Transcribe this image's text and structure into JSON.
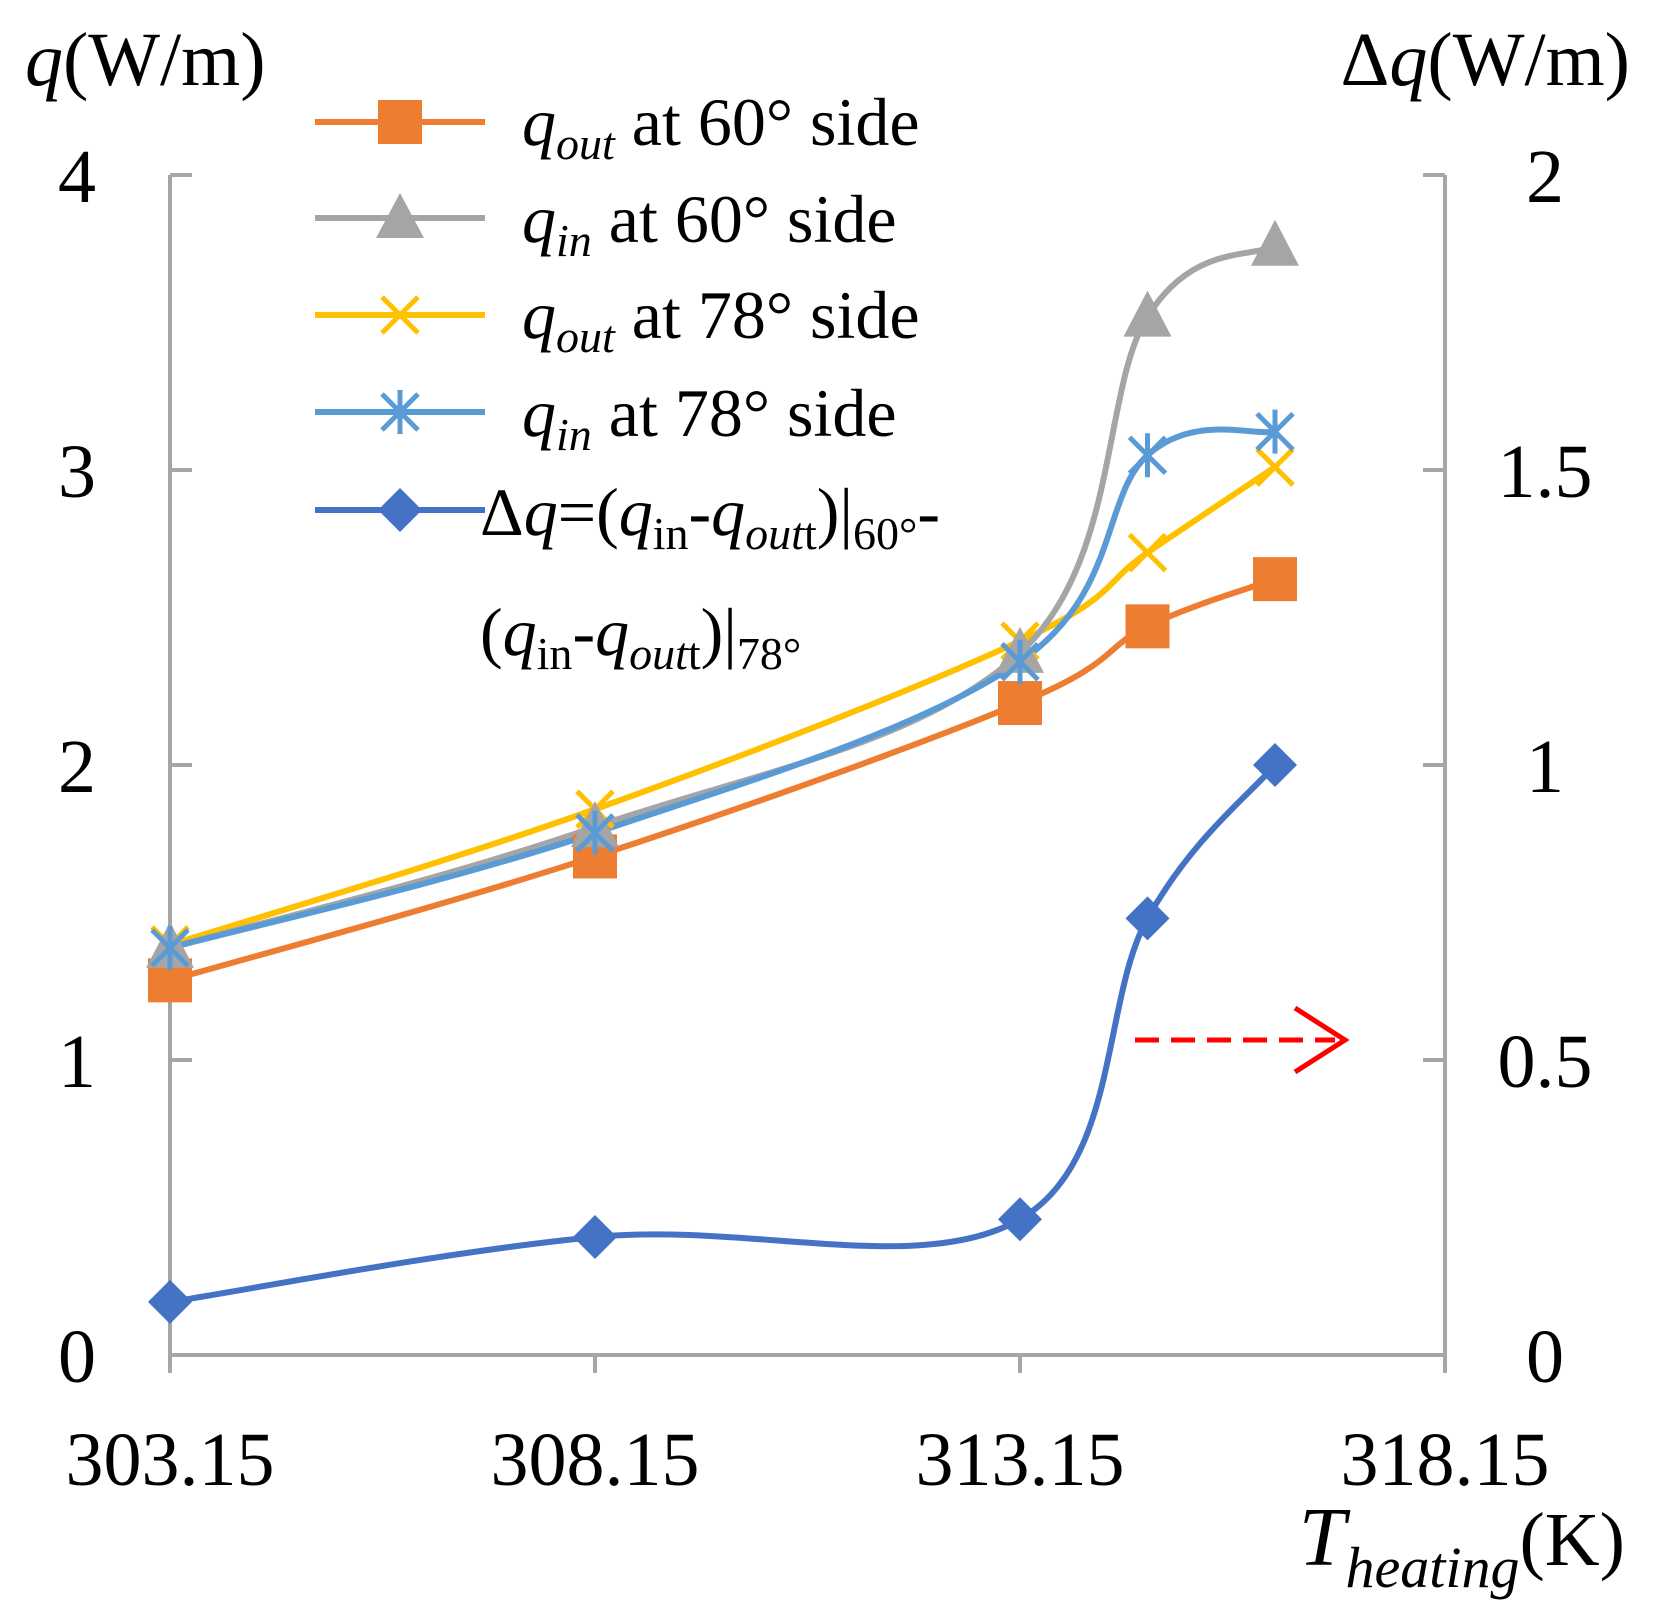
{
  "chart_data": {
    "type": "line",
    "title": "",
    "x": [
      303.15,
      308.15,
      313.15,
      314.65,
      316.15
    ],
    "xlabel": {
      "symbol": "T",
      "subscript": "heating",
      "unit": "(K)"
    },
    "ylabel_left": {
      "symbol": "q",
      "unit": "(W/m)"
    },
    "ylabel_right": {
      "delta": "Δ",
      "symbol": "q",
      "unit": "(W/m)"
    },
    "xlim": [
      303.15,
      318.15
    ],
    "ylim_left": [
      0,
      4
    ],
    "ylim_right": [
      0,
      2
    ],
    "x_tick_labels": [
      "303.15",
      "308.15",
      "313.15",
      "318.15"
    ],
    "y_left_tick_labels": [
      "0",
      "1",
      "2",
      "3",
      "4"
    ],
    "y_right_tick_labels": [
      "0",
      "0.5",
      "1",
      "1.5",
      "2"
    ],
    "series": [
      {
        "name": "q_out at 60° side",
        "legend": {
          "sym": "q",
          "sub": "out",
          "rest": " at 60° side"
        },
        "color": "#ED7D31",
        "marker": "square",
        "axis": "left",
        "values": [
          1.27,
          1.69,
          2.21,
          2.47,
          2.63
        ]
      },
      {
        "name": "q_in at 60° side",
        "legend": {
          "sym": "q",
          "sub": "in",
          "rest": " at 60° side"
        },
        "color": "#A5A5A5",
        "marker": "triangle",
        "axis": "left",
        "values": [
          1.38,
          1.79,
          2.38,
          3.52,
          3.76
        ]
      },
      {
        "name": "q_out at 78° side",
        "legend": {
          "sym": "q",
          "sub": "out",
          "rest": " at 78° side"
        },
        "color": "#FFC000",
        "marker": "x",
        "axis": "left",
        "values": [
          1.39,
          1.85,
          2.42,
          2.72,
          3.01
        ]
      },
      {
        "name": "q_in at 78° side",
        "legend": {
          "sym": "q",
          "sub": "in",
          "rest": " at 78° side"
        },
        "color": "#5B9BD5",
        "marker": "star",
        "axis": "left",
        "values": [
          1.38,
          1.77,
          2.35,
          3.05,
          3.13
        ]
      },
      {
        "name": "Δq=(q_in-q_out)|60°-(q_in-q_out)|78°",
        "legend": {
          "line1": {
            "prefix": "Δ",
            "sym": "q",
            "eq": "=(",
            "q1": "q",
            "in1": "in",
            "minus1": "-",
            "q2": "q",
            "out1": "out",
            "t1": "t",
            "bar1": ")|",
            "deg60": "60°",
            "tail": "-"
          },
          "line2": {
            "open": "(",
            "q1": "q",
            "in1": "in",
            "minus1": "-",
            "q2": "q",
            "out1": "out",
            "t1": "t",
            "bar1": ")|",
            "deg78": "78°"
          }
        },
        "color": "#4472C4",
        "marker": "diamond",
        "axis": "right",
        "values": [
          0.09,
          0.2,
          0.23,
          0.74,
          1.0
        ]
      }
    ],
    "annotation": {
      "type": "dashed-arrow",
      "color": "#FF0000",
      "meaning": "Δq series uses right axis"
    }
  }
}
